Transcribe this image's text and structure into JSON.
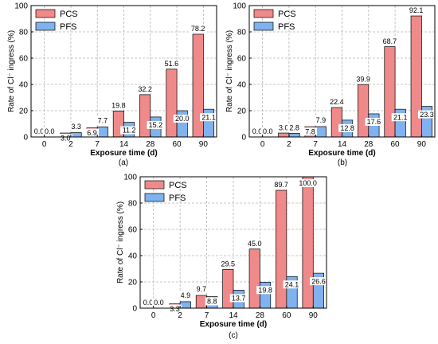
{
  "figure": {
    "panel_labels": [
      "(a)",
      "(b)",
      "(c)"
    ]
  },
  "colors": {
    "pcs": "#f08a8a",
    "pfs": "#7fb2ee",
    "grid": "#b5b5b5",
    "axis": "#000000"
  },
  "chart_data": [
    {
      "type": "bar",
      "panel": "(a)",
      "categories": [
        "0",
        "2",
        "7",
        "14",
        "28",
        "60",
        "90"
      ],
      "xlabel": "Exposure time (d)",
      "ylabel": "Rate of Cl⁻ ingress (%)",
      "ylim": [
        0,
        100
      ],
      "yticks": [
        0,
        20,
        40,
        60,
        80,
        100
      ],
      "grid": true,
      "legend": "top-left",
      "series": [
        {
          "name": "PCS",
          "values": [
            0.0,
            3.0,
            6.9,
            19.8,
            32.2,
            51.6,
            78.2
          ],
          "labels": [
            "0.0",
            "3.0",
            "6.9",
            "19.8",
            "32.2",
            "51.6",
            "78.2"
          ]
        },
        {
          "name": "PFS",
          "values": [
            0.0,
            3.3,
            7.7,
            11.2,
            15.2,
            20.0,
            21.1
          ],
          "labels": [
            "0.0",
            "3.3",
            "7.7",
            "11.2",
            "15.2",
            "20.0",
            "21.1"
          ]
        }
      ]
    },
    {
      "type": "bar",
      "panel": "(b)",
      "categories": [
        "0",
        "2",
        "7",
        "14",
        "28",
        "60",
        "90"
      ],
      "xlabel": "Exposure time (d)",
      "ylabel": "Rate of Cl⁻ ingress (%)",
      "ylim": [
        0,
        100
      ],
      "yticks": [
        0,
        20,
        40,
        60,
        80,
        100
      ],
      "grid": true,
      "legend": "top-left",
      "series": [
        {
          "name": "PCS",
          "values": [
            0.0,
            3.0,
            7.8,
            22.4,
            39.9,
            68.7,
            92.1
          ],
          "labels": [
            "0.0",
            "3.0",
            "7.8",
            "22.4",
            "39.9",
            "68.7",
            "92.1"
          ]
        },
        {
          "name": "PFS",
          "values": [
            0.0,
            2.8,
            7.9,
            12.8,
            17.6,
            21.1,
            23.3
          ],
          "labels": [
            "0.0",
            "2.8",
            "7.9",
            "12.8",
            "17.6",
            "21.1",
            "23.3"
          ]
        }
      ]
    },
    {
      "type": "bar",
      "panel": "(c)",
      "categories": [
        "0",
        "2",
        "7",
        "14",
        "28",
        "60",
        "90"
      ],
      "xlabel": "Exposure time (d)",
      "ylabel": "Rate of Cl⁻ ingress (%)",
      "ylim": [
        0,
        100
      ],
      "yticks": [
        0,
        20,
        40,
        60,
        80,
        100
      ],
      "grid": true,
      "legend": "top-left",
      "series": [
        {
          "name": "PCS",
          "values": [
            0.0,
            3.3,
            9.7,
            29.5,
            45.0,
            89.7,
            100.0
          ],
          "labels": [
            "0.0",
            "3.3",
            "9.7",
            "29.5",
            "45.0",
            "89.7",
            "100.0"
          ]
        },
        {
          "name": "PFS",
          "values": [
            0.0,
            4.9,
            8.8,
            13.7,
            19.8,
            24.1,
            26.6
          ],
          "labels": [
            "0.0",
            "4.9",
            "8.8",
            "13.7",
            "19.8",
            "24.1",
            "26.6"
          ]
        }
      ]
    }
  ]
}
